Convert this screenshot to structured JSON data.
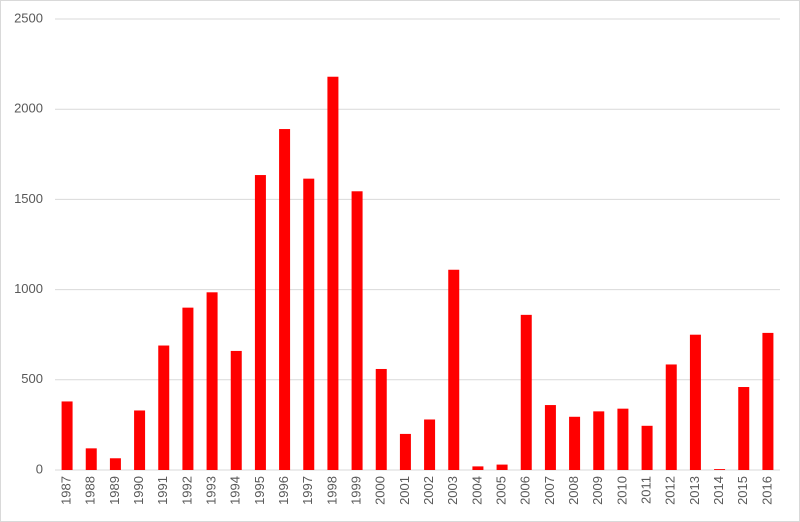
{
  "chart_data": {
    "type": "bar",
    "categories": [
      "1987",
      "1988",
      "1989",
      "1990",
      "1991",
      "1992",
      "1993",
      "1994",
      "1995",
      "1996",
      "1997",
      "1998",
      "1999",
      "2000",
      "2001",
      "2002",
      "2003",
      "2004",
      "2005",
      "2006",
      "2007",
      "2008",
      "2009",
      "2010",
      "2011",
      "2012",
      "2013",
      "2014",
      "2015",
      "2016"
    ],
    "values": [
      380,
      120,
      65,
      330,
      690,
      900,
      985,
      660,
      1635,
      1890,
      1615,
      2180,
      1545,
      560,
      200,
      280,
      1110,
      20,
      30,
      860,
      360,
      295,
      325,
      340,
      245,
      585,
      750,
      5,
      460,
      760
    ],
    "color": "#ff0000",
    "ylim": [
      0,
      2500
    ],
    "yticks": [
      0,
      500,
      1000,
      1500,
      2000,
      2500
    ],
    "grid": true
  }
}
